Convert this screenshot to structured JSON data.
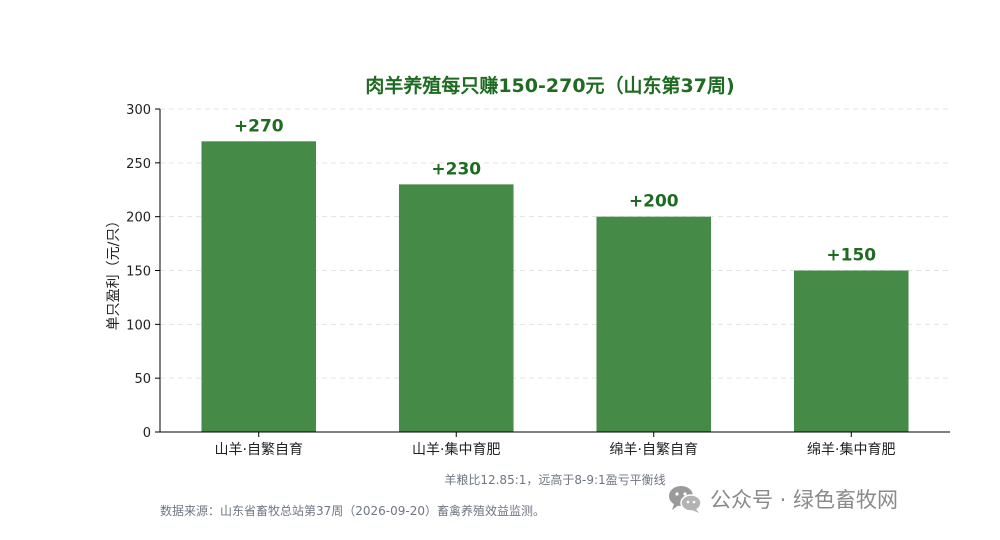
{
  "chart_data": {
    "type": "bar",
    "title": "肉羊养殖每只赚150-270元（山东第37周)",
    "ylabel": "单只盈利（元/只）",
    "xlabel": "",
    "categories": [
      "山羊·自繁自育",
      "山羊·集中育肥",
      "绵羊·自繁自育",
      "绵羊·集中育肥"
    ],
    "values": [
      270,
      230,
      200,
      150
    ],
    "value_labels": [
      "+270",
      "+230",
      "+200",
      "+150"
    ],
    "ylim": [
      0,
      300
    ],
    "yticks": [
      0,
      50,
      100,
      150,
      200,
      250,
      300
    ],
    "grid": "horizontal dashed",
    "legend": "none",
    "annotation": "羊粮比12.85:1，远高于8-9:1盈亏平衡线",
    "colors": {
      "bar": "#458b47",
      "title": "#1f6b22",
      "label": "#1f6b22",
      "axis": "#000000",
      "grid": "#e3e3e3"
    }
  },
  "footer": {
    "source": "数据来源：山东省畜牧总站第37周（2026-09-20）畜禽养殖效益监测。"
  },
  "watermark": {
    "icon": "wechat-icon",
    "text": "公众号 · 绿色畜牧网"
  }
}
